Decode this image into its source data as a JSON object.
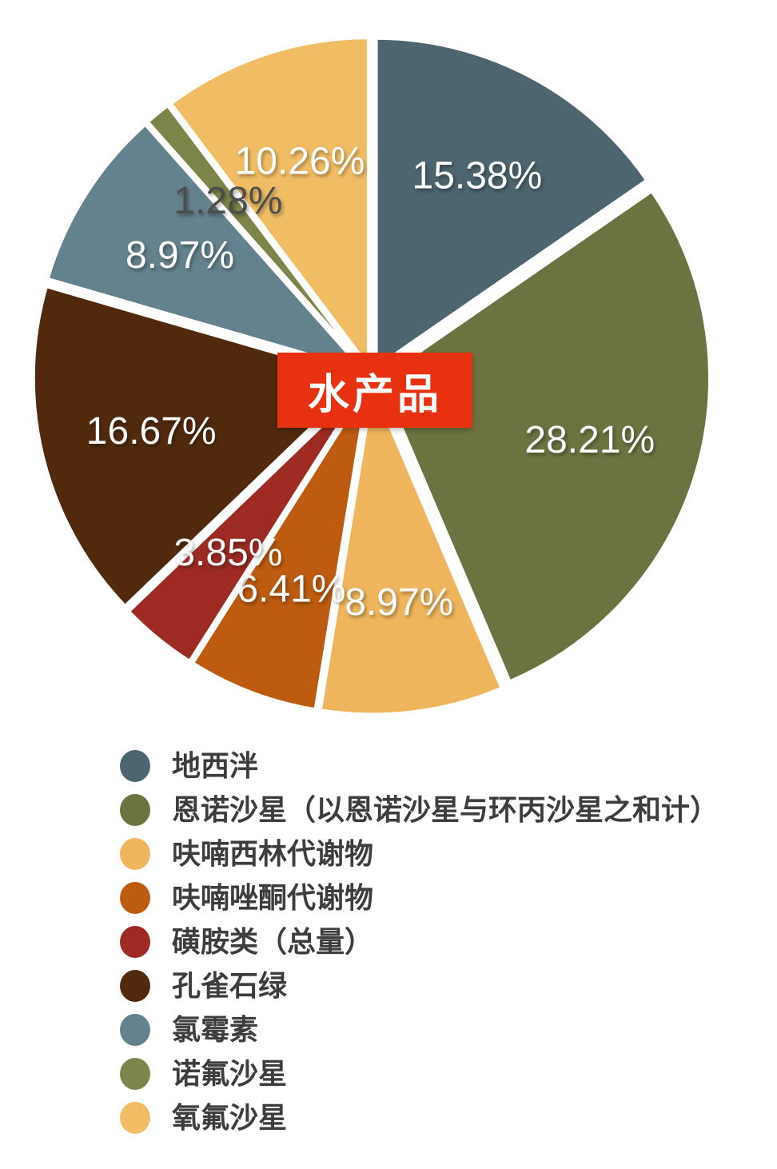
{
  "chart_data": {
    "type": "pie",
    "center_label": "水产品",
    "center_label_bg": "#e73111",
    "center_label_color": "#ffffff",
    "categories": [
      "地西泮",
      "恩诺沙星（以恩诺沙星与环丙沙星之和计）",
      "呋喃西林代谢物",
      "呋喃唑酮代谢物",
      "磺胺类（总量）",
      "孔雀石绿",
      "氯霉素",
      "诺氟沙星",
      "氧氟沙星"
    ],
    "values": [
      15.38,
      28.21,
      8.97,
      6.41,
      3.85,
      16.67,
      8.97,
      1.28,
      10.26
    ],
    "labels": [
      "15.38%",
      "28.21%",
      "8.97%",
      "6.41%",
      "3.85%",
      "16.67%",
      "8.97%",
      "1.28%",
      "10.26%"
    ],
    "colors": [
      "#4d656e",
      "#6d7340",
      "#eeb55c",
      "#bd5c10",
      "#9d2b24",
      "#512a0e",
      "#64828d",
      "#7d8449",
      "#f0bd64"
    ],
    "label_colors": [
      "#ffffff",
      "#ffffff",
      "#ffffff",
      "#ffffff",
      "#ffffff",
      "#ffffff",
      "#ffffff",
      "#4d4d4d",
      "#ffffff"
    ],
    "start_angle_deg": 0,
    "direction": "clockwise",
    "gap_color": "#ffffff",
    "legend_position": "bottom-left"
  }
}
